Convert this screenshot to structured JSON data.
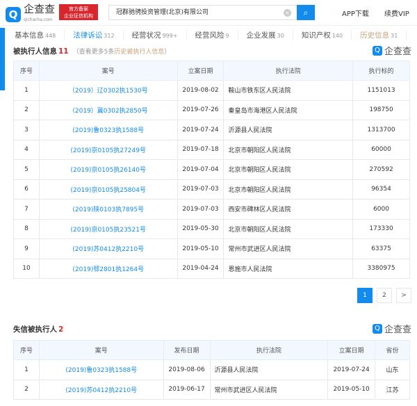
{
  "header": {
    "logo_text": "企查查",
    "logo_domain": "qichacha.com",
    "badge_line1": "官方备案",
    "badge_line2": "企业征信机构",
    "search_value": "冠群驰骋投资管理(北京)有限公司",
    "app_download": "APP下载",
    "vip": "续费VIP"
  },
  "tabs": [
    {
      "label": "基本信息",
      "count": "448"
    },
    {
      "label": "法律诉讼",
      "count": "312"
    },
    {
      "label": "经营状况",
      "count": "999+"
    },
    {
      "label": "经营风险",
      "count": "9"
    },
    {
      "label": "企业发展",
      "count": "30"
    },
    {
      "label": "知识产权",
      "count": "140"
    },
    {
      "label": "历史信息",
      "count": "31"
    }
  ],
  "section1": {
    "title": "被执行人信息",
    "count": "11",
    "more_prefix": "（查看更多5条",
    "more_link": "历史被执行人信息",
    "more_suffix": "）",
    "watermark": "企查查",
    "headers": [
      "序号",
      "案号",
      "立案日期",
      "执行法院",
      "执行标的"
    ],
    "rows": [
      [
        "1",
        "（2019）辽0302执1530号",
        "2019-08-02",
        "鞍山市铁东区人民法院",
        "1151013"
      ],
      [
        "2",
        "（2019）冀0302执2850号",
        "2019-07-26",
        "秦皇岛市海港区人民法院",
        "198750"
      ],
      [
        "3",
        "(2019)鲁0323执1588号",
        "2019-07-24",
        "沂源县人民法院",
        "1313700"
      ],
      [
        "4",
        "(2019)京0105执27249号",
        "2019-07-18",
        "北京市朝阳区人民法院",
        "60000"
      ],
      [
        "5",
        "(2019)京0105执26140号",
        "2019-07-04",
        "北京市朝阳区人民法院",
        "270592"
      ],
      [
        "6",
        "(2019)京0105执25804号",
        "2019-07-03",
        "北京市朝阳区人民法院",
        "96354"
      ],
      [
        "7",
        "(2019)陕0103执7895号",
        "2019-07-03",
        "西安市碑林区人民法院",
        "6000"
      ],
      [
        "8",
        "(2019)京0105执23521号",
        "2019-05-30",
        "北京市朝阳区人民法院",
        "173330"
      ],
      [
        "9",
        "(2019)苏0412执2210号",
        "2019-05-10",
        "常州市武进区人民法院",
        "63375"
      ],
      [
        "10",
        "(2019)鄂2801执1264号",
        "2019-04-24",
        "恩施市人民法院",
        "3380975"
      ]
    ]
  },
  "pagination": {
    "pages": [
      "1",
      "2"
    ],
    "current": "1",
    "next": ">"
  },
  "section2": {
    "title": "失信被执行人",
    "count": "2",
    "watermark": "企查查",
    "headers": [
      "序号",
      "案号",
      "发布日期",
      "执行法院",
      "立案日期",
      "省份"
    ],
    "rows": [
      [
        "1",
        "(2019)鲁0323执1588号",
        "2019-08-06",
        "沂源县人民法院",
        "2019-07-24",
        "山东"
      ],
      [
        "2",
        "(2019)苏0412执2210号",
        "2019-06-17",
        "常州市武进区人民法院",
        "2019-05-10",
        "江苏"
      ]
    ]
  }
}
